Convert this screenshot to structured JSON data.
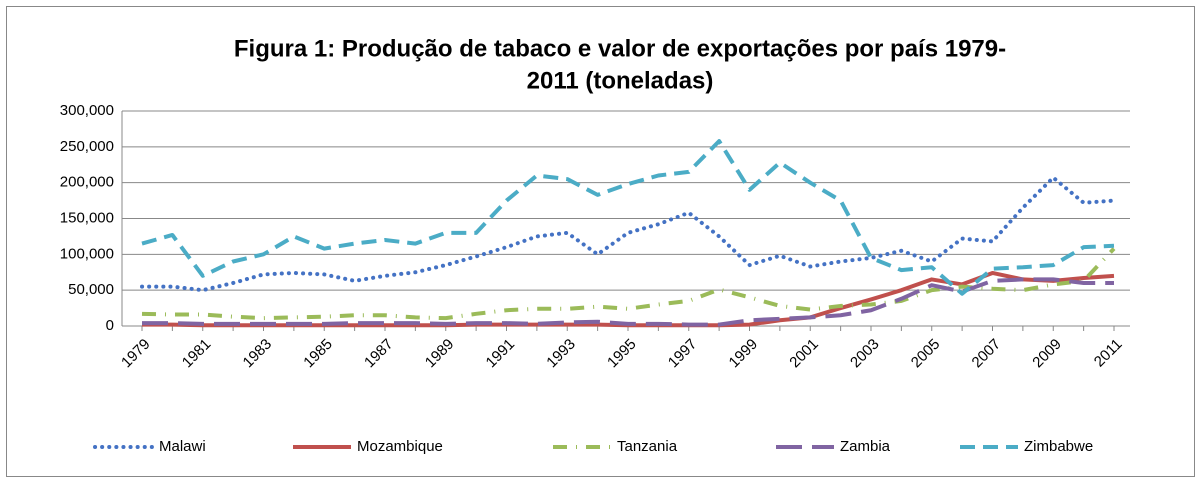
{
  "chart_data": {
    "type": "line",
    "title": [
      "Figura 1: Produção de tabaco e valor de exportações por país 1979-",
      "2011 (toneladas)"
    ],
    "categories": [
      "1979",
      null,
      "1981",
      null,
      "1983",
      null,
      "1985",
      null,
      "1987",
      null,
      "1989",
      null,
      "1991",
      null,
      "1993",
      null,
      "1995",
      null,
      "1997",
      null,
      "1999",
      null,
      "2001",
      null,
      "2003",
      null,
      "2005",
      null,
      "2007",
      null,
      "2009",
      null,
      "2011"
    ],
    "series": [
      {
        "name": "Malawi",
        "color": "#4472c4",
        "style": "dotted",
        "values": [
          55000,
          55000,
          50000,
          60000,
          72000,
          74000,
          72000,
          63000,
          70000,
          75000,
          85000,
          97000,
          110000,
          125000,
          130000,
          100000,
          130000,
          142000,
          158000,
          125000,
          85000,
          98000,
          83000,
          90000,
          95000,
          105000,
          90000,
          122000,
          118000,
          165000,
          207000,
          172000,
          175000
        ]
      },
      {
        "name": "Mozambique",
        "color": "#c0504d",
        "style": "solid",
        "values": [
          2000,
          2000,
          1000,
          1000,
          1000,
          1000,
          1000,
          1000,
          1000,
          1000,
          1000,
          2000,
          2000,
          2000,
          2000,
          2000,
          1000,
          1000,
          1000,
          1000,
          2000,
          8000,
          12000,
          25000,
          37000,
          50000,
          65000,
          58000,
          74000,
          65000,
          63000,
          67000,
          70000
        ]
      },
      {
        "name": "Tanzania",
        "color": "#9bbb59",
        "style": "dashdot",
        "values": [
          17000,
          16000,
          16000,
          13000,
          11000,
          12000,
          13000,
          15000,
          15000,
          12000,
          11000,
          17000,
          22000,
          24000,
          24000,
          27000,
          24000,
          30000,
          35000,
          51000,
          40000,
          28000,
          23000,
          28000,
          30000,
          35000,
          50000,
          55000,
          52000,
          50000,
          58000,
          63000,
          108000
        ]
      },
      {
        "name": "Zambia",
        "color": "#8064a2",
        "style": "longdash",
        "values": [
          4000,
          4000,
          3000,
          3000,
          3000,
          3000,
          3000,
          4000,
          4000,
          4000,
          3000,
          4000,
          4000,
          3000,
          5000,
          6000,
          3000,
          3000,
          2000,
          2000,
          8000,
          10000,
          12000,
          15000,
          22000,
          38000,
          57000,
          48000,
          63000,
          65000,
          65000,
          60000,
          60000
        ]
      },
      {
        "name": "Zimbabwe",
        "color": "#4bacc6",
        "style": "dashed",
        "values": [
          115000,
          127000,
          70000,
          90000,
          100000,
          125000,
          108000,
          115000,
          120000,
          115000,
          130000,
          130000,
          175000,
          210000,
          205000,
          183000,
          198000,
          210000,
          215000,
          258000,
          190000,
          228000,
          200000,
          175000,
          95000,
          78000,
          82000,
          45000,
          80000,
          82000,
          85000,
          110000,
          112000
        ]
      }
    ],
    "ylim": [
      0,
      300000
    ],
    "yticks": [
      0,
      {
        "value": 50000,
        "label": "50,000"
      },
      {
        "value": 100000,
        "label": "100,000"
      },
      {
        "value": 150000,
        "label": "150,000"
      },
      {
        "value": 200000,
        "label": "200,000"
      },
      {
        "value": 250000,
        "label": "250,000"
      },
      {
        "value": 300000,
        "label": "300,000"
      }
    ],
    "grid": true,
    "legend": "bottom"
  }
}
